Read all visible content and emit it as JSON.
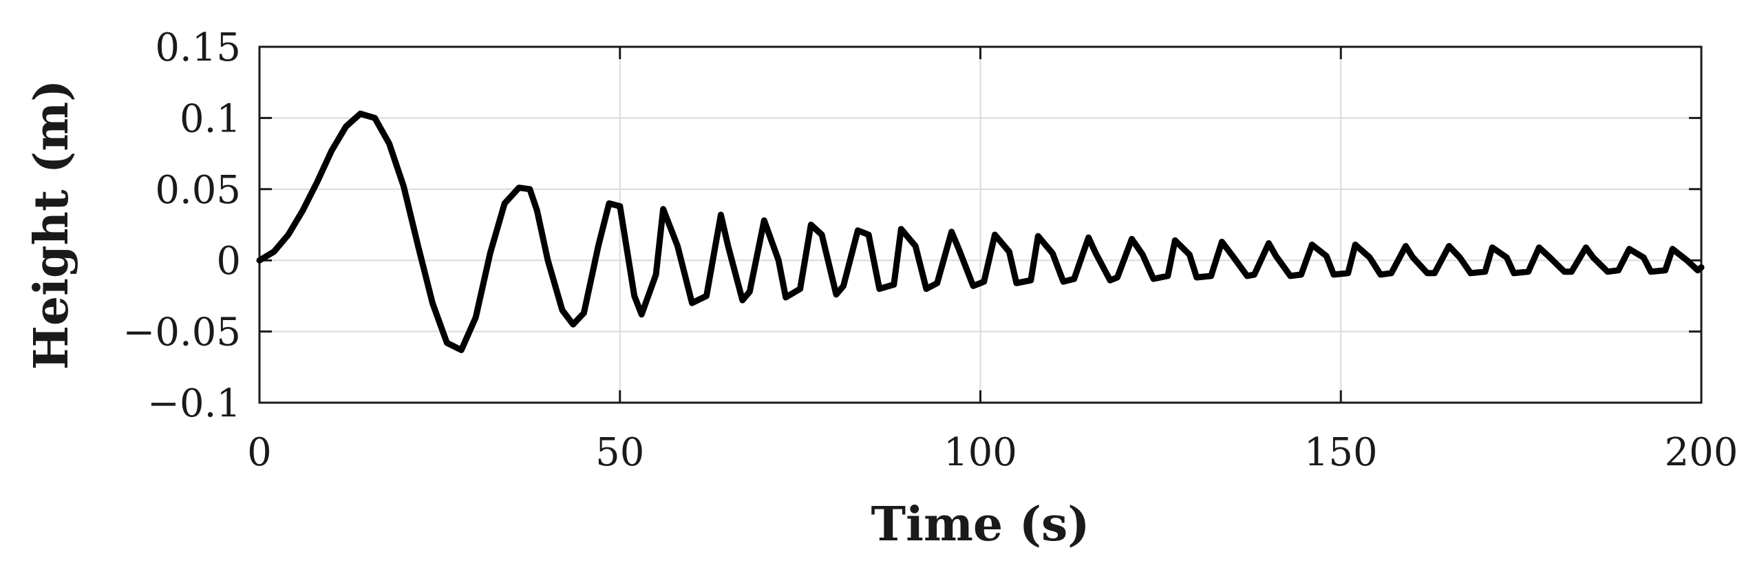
{
  "chart_data": {
    "type": "line",
    "title": "",
    "xlabel": "Time (s)",
    "ylabel": "Height (m)",
    "xlim": [
      0,
      200
    ],
    "ylim": [
      -0.1,
      0.15
    ],
    "xticks": [
      0,
      50,
      100,
      150,
      200
    ],
    "xtick_labels": [
      "0",
      "50",
      "100",
      "150",
      "200"
    ],
    "yticks": [
      -0.1,
      -0.05,
      0,
      0.05,
      0.1,
      0.15
    ],
    "ytick_labels": [
      "−0.1",
      "−0.05",
      "0",
      "0.05",
      "0.1",
      "0.15"
    ],
    "grid": true,
    "series": [
      {
        "x": [
          0,
          2,
          4,
          6,
          8,
          10,
          12,
          14,
          16,
          18,
          20,
          22,
          24,
          26,
          28,
          30,
          32,
          34,
          36,
          37.5,
          38.5,
          40,
          42,
          43.5,
          45,
          47,
          48.5,
          50,
          52,
          53,
          55,
          56,
          58,
          60,
          62,
          64,
          65,
          67,
          68,
          70,
          72,
          73,
          75,
          76.5,
          78,
          80,
          81,
          83,
          84.5,
          86,
          88,
          89,
          91,
          92.5,
          94,
          96,
          97,
          99,
          100.5,
          102,
          104,
          105,
          107,
          108,
          110,
          111.5,
          113,
          115,
          116,
          118,
          119,
          121,
          122.5,
          124,
          126,
          127,
          129,
          130,
          132,
          133.5,
          135,
          137,
          138,
          140,
          141,
          143,
          144.5,
          146,
          148,
          149,
          151,
          152,
          154,
          155.5,
          157,
          159,
          160,
          162,
          163,
          165,
          166.5,
          168,
          170,
          171,
          173,
          174,
          176,
          177.5,
          179,
          181,
          182,
          184,
          185,
          187,
          188.5,
          190,
          192,
          193,
          195,
          196,
          198,
          199.5,
          200
        ],
        "y": [
          0,
          0.006,
          0.018,
          0.035,
          0.055,
          0.077,
          0.094,
          0.103,
          0.1,
          0.082,
          0.052,
          0.01,
          -0.03,
          -0.058,
          -0.063,
          -0.04,
          0.005,
          0.04,
          0.051,
          0.05,
          0.035,
          0.0,
          -0.035,
          -0.045,
          -0.037,
          0.01,
          0.04,
          0.038,
          -0.025,
          -0.038,
          -0.01,
          0.036,
          0.01,
          -0.03,
          -0.025,
          0.032,
          0.01,
          -0.028,
          -0.022,
          0.028,
          0.0,
          -0.026,
          -0.02,
          0.025,
          0.018,
          -0.024,
          -0.018,
          0.021,
          0.018,
          -0.02,
          -0.017,
          0.022,
          0.01,
          -0.02,
          -0.016,
          0.02,
          0.008,
          -0.018,
          -0.015,
          0.018,
          0.006,
          -0.016,
          -0.014,
          0.017,
          0.005,
          -0.015,
          -0.013,
          0.016,
          0.005,
          -0.014,
          -0.012,
          0.015,
          0.004,
          -0.013,
          -0.011,
          0.014,
          0.004,
          -0.012,
          -0.011,
          0.013,
          0.003,
          -0.011,
          -0.01,
          0.012,
          0.003,
          -0.011,
          -0.01,
          0.011,
          0.003,
          -0.01,
          -0.009,
          0.011,
          0.002,
          -0.01,
          -0.009,
          0.01,
          0.002,
          -0.009,
          -0.009,
          0.01,
          0.002,
          -0.009,
          -0.008,
          0.009,
          0.002,
          -0.009,
          -0.008,
          0.009,
          0.002,
          -0.008,
          -0.008,
          0.009,
          0.002,
          -0.008,
          -0.007,
          0.008,
          0.002,
          -0.008,
          -0.007,
          0.008,
          0.0,
          -0.007,
          -0.005
        ]
      }
    ]
  }
}
